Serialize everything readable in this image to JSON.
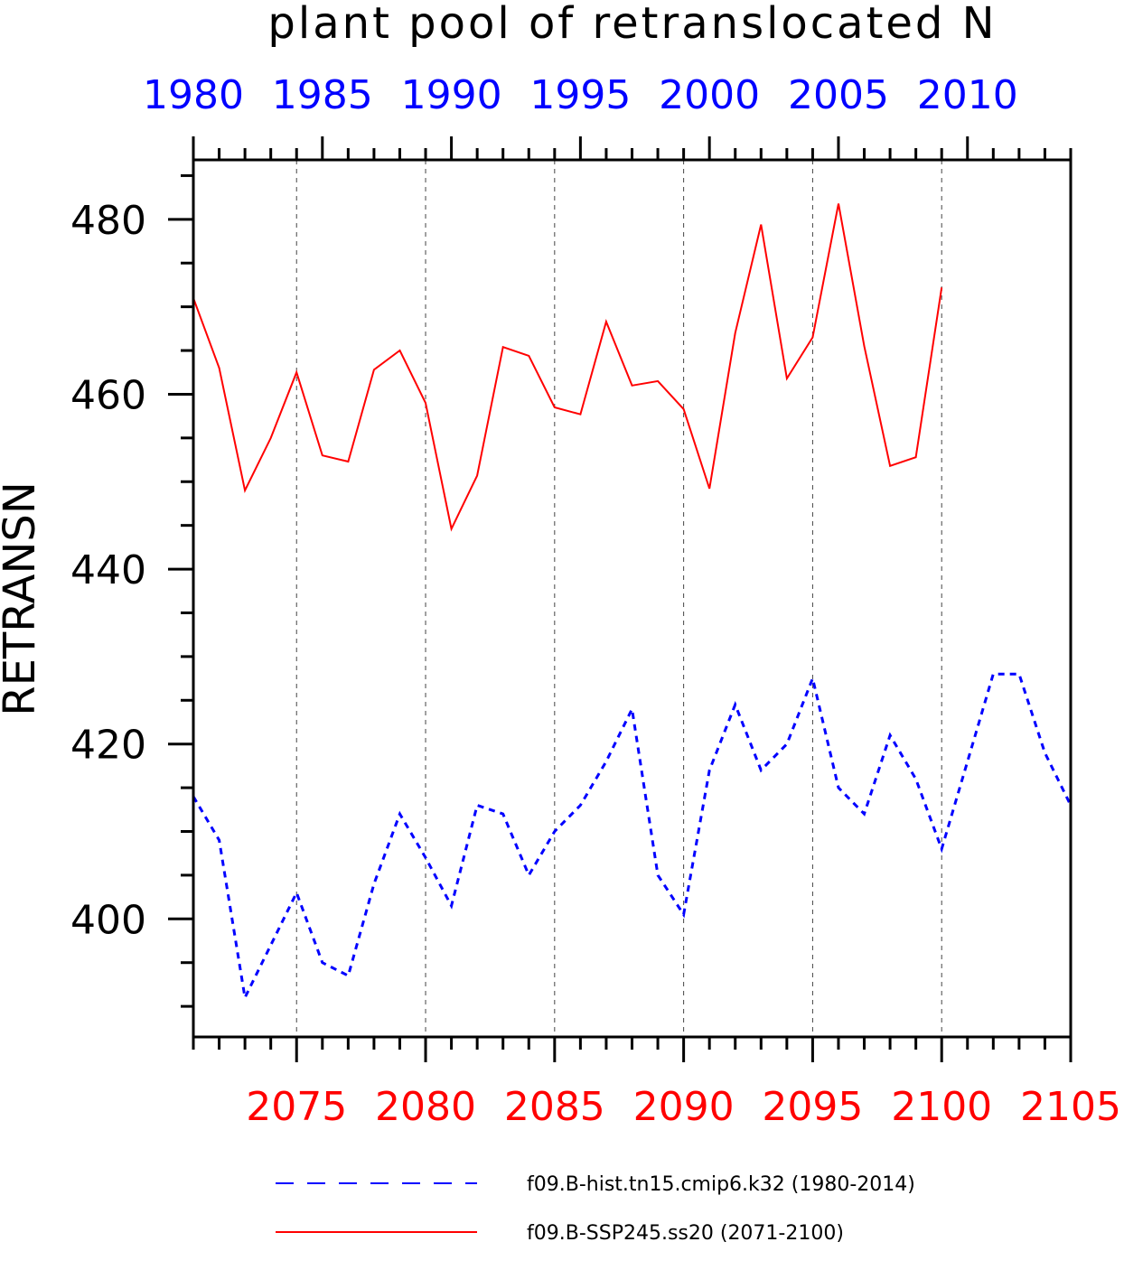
{
  "chart_data": {
    "type": "line",
    "title": "plant pool of retranslocated N",
    "ylabel": "RETRANSN",
    "xlabel": "",
    "ylim": [
      386.5,
      486.8
    ],
    "yticks": [
      400,
      420,
      440,
      460,
      480
    ],
    "grid": "vertical dashed lines at major bottom-axis ticks",
    "top_axis": {
      "color": "#0000ff",
      "range": [
        1980,
        2014
      ],
      "tick_labels": [
        "1980",
        "1985",
        "1990",
        "1995",
        "2000",
        "2005",
        "2010"
      ]
    },
    "bottom_axis": {
      "color": "#ff0000",
      "range": [
        2071,
        2105
      ],
      "tick_labels": [
        "2075",
        "2080",
        "2085",
        "2090",
        "2095",
        "2100",
        "2105"
      ]
    },
    "legend_position": "bottom",
    "series": [
      {
        "name": "f09.B-hist.tn15.cmip6.k32 (1980-2014)",
        "axis": "top",
        "color": "#0000ff",
        "style": "dashed",
        "x": [
          1980,
          1981,
          1982,
          1983,
          1984,
          1985,
          1986,
          1987,
          1988,
          1989,
          1990,
          1991,
          1992,
          1993,
          1994,
          1995,
          1996,
          1997,
          1998,
          1999,
          2000,
          2001,
          2002,
          2003,
          2004,
          2005,
          2006,
          2007,
          2008,
          2009,
          2010,
          2011,
          2012,
          2013,
          2014
        ],
        "values": [
          414,
          409,
          391,
          397,
          403,
          395,
          393.5,
          404,
          412,
          407,
          401.5,
          413,
          412,
          405,
          410,
          413,
          418,
          424,
          405,
          400.5,
          417,
          424.5,
          417,
          420,
          427.5,
          415,
          412,
          421,
          416,
          408,
          418,
          428,
          428,
          419,
          413
        ]
      },
      {
        "name": "f09.B-SSP245.ss20 (2071-2100)",
        "axis": "bottom",
        "color": "#ff0000",
        "style": "solid",
        "x": [
          2071,
          2072,
          2073,
          2074,
          2075,
          2076,
          2077,
          2078,
          2079,
          2080,
          2081,
          2082,
          2083,
          2084,
          2085,
          2086,
          2087,
          2088,
          2089,
          2090,
          2091,
          2092,
          2093,
          2094,
          2095,
          2096,
          2097,
          2098,
          2099,
          2100
        ],
        "values": [
          471,
          463,
          449,
          455,
          462.5,
          453,
          452.3,
          462.8,
          465,
          459,
          444.6,
          450.7,
          465.4,
          464.4,
          458.5,
          457.7,
          468.3,
          461,
          461.5,
          458.3,
          449.2,
          467,
          479.4,
          461.8,
          466.5,
          481.8,
          465.5,
          451.8,
          452.8,
          472.2
        ]
      }
    ]
  }
}
